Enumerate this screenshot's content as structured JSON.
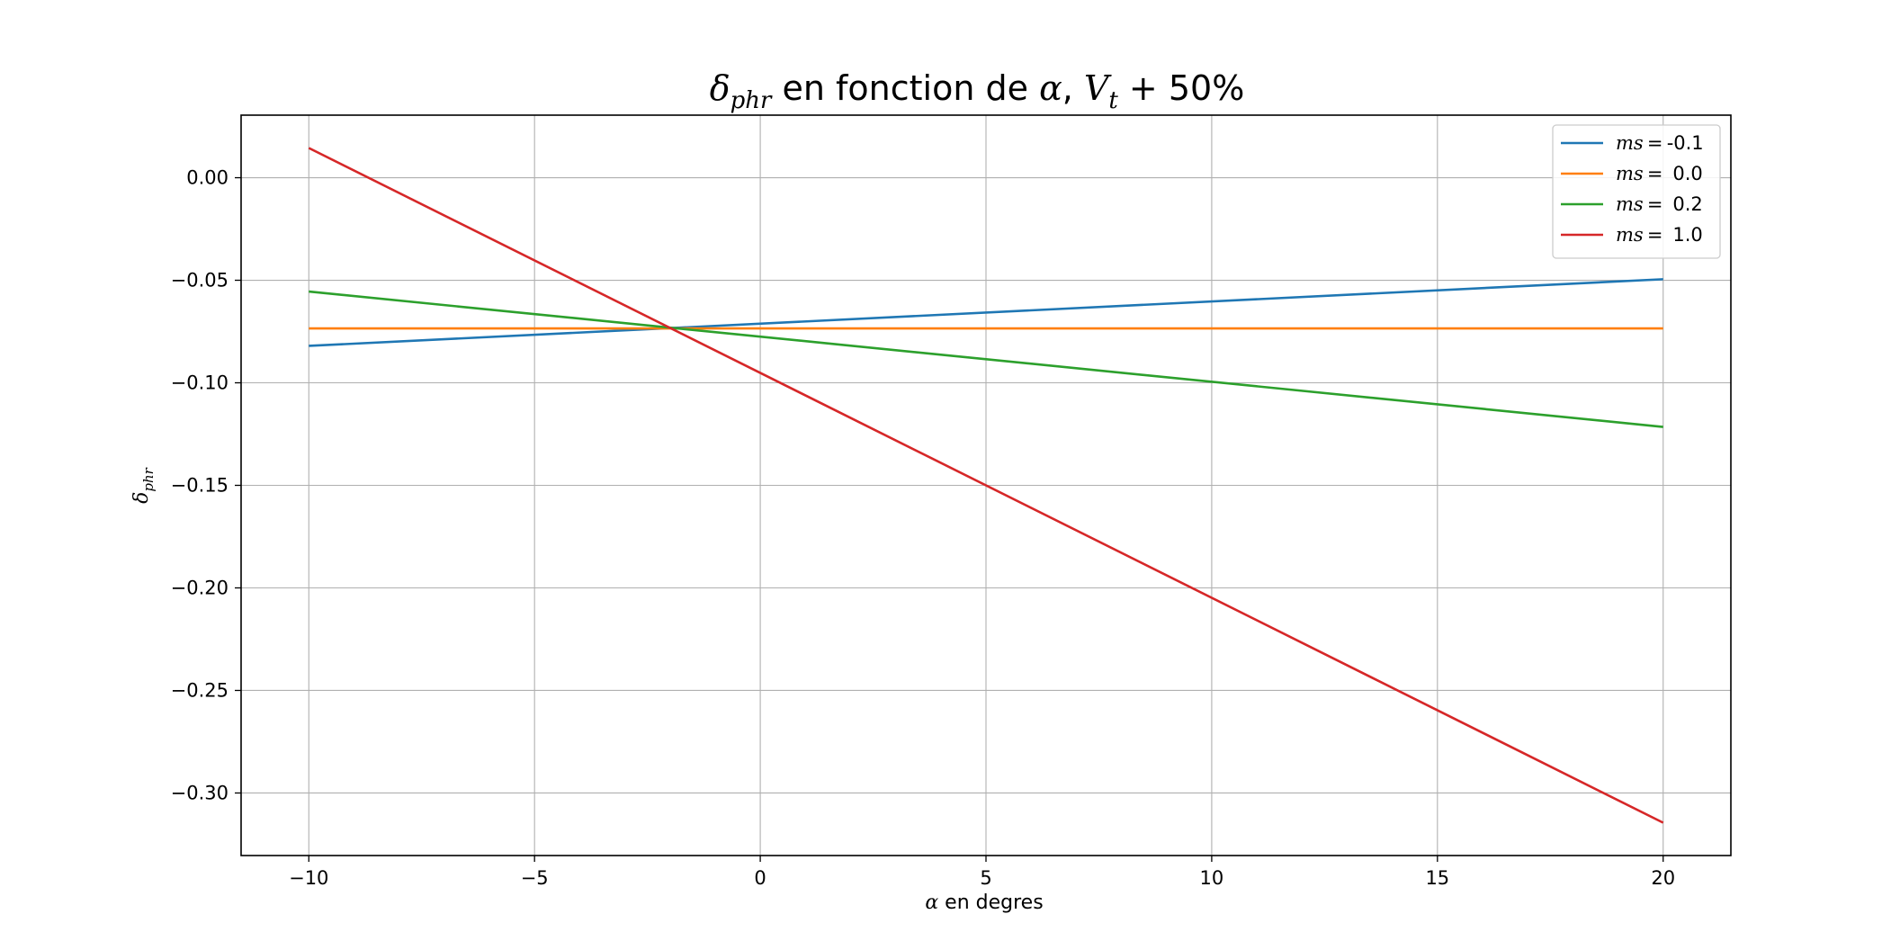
{
  "chart_data": {
    "type": "line",
    "title": {
      "delta": "δ",
      "delta_sub": "phr",
      "text1": " en fonction de ",
      "alpha": "α",
      "sep": ", ",
      "v": "V",
      "v_sub": "t",
      "text2": " + 50%"
    },
    "xlabel": {
      "alpha": "α",
      "text": " en degres"
    },
    "ylabel": {
      "delta": "δ",
      "sub": "phr"
    },
    "xlim": [
      -11.5,
      21.5
    ],
    "ylim": [
      -0.3305,
      0.0305
    ],
    "xticks": [
      -10,
      -5,
      0,
      5,
      10,
      15,
      20
    ],
    "xtick_labels": [
      "−10",
      "−5",
      "0",
      "5",
      "10",
      "15",
      "20"
    ],
    "yticks": [
      0.0,
      -0.05,
      -0.1,
      -0.15,
      -0.2,
      -0.25,
      -0.3
    ],
    "ytick_labels": [
      "0.00",
      "−0.05",
      "−0.10",
      "−0.15",
      "−0.20",
      "−0.25",
      "−0.30"
    ],
    "grid": true,
    "legend_position": "top-right",
    "x": [
      -10,
      20
    ],
    "series": [
      {
        "name_var": "ms",
        "name_value": "-0.1",
        "color": "#1f77b4",
        "values": [
          -0.082,
          -0.0495
        ]
      },
      {
        "name_var": "ms",
        "name_value": "0.0",
        "color": "#ff7f0e",
        "values": [
          -0.0735,
          -0.0735
        ]
      },
      {
        "name_var": "ms",
        "name_value": "0.2",
        "color": "#2ca02c",
        "values": [
          -0.0555,
          -0.1215
        ]
      },
      {
        "name_var": "ms",
        "name_value": "1.0",
        "color": "#d62728",
        "values": [
          0.0145,
          -0.3145
        ]
      }
    ]
  }
}
